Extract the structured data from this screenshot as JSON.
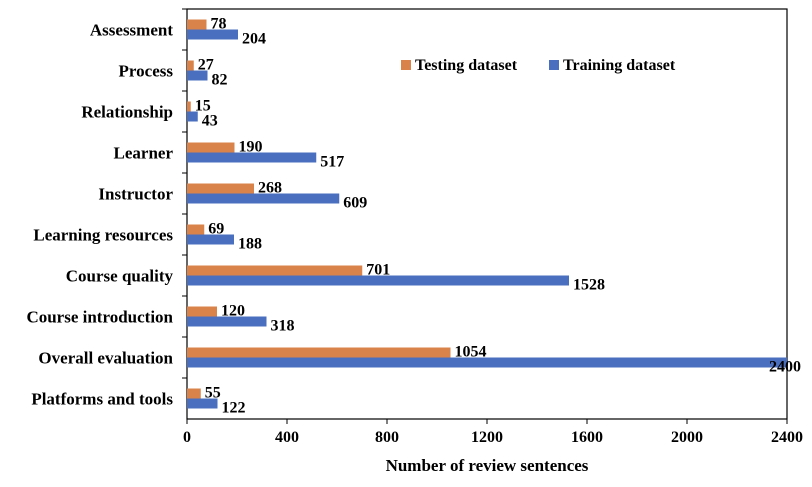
{
  "chart_data": {
    "type": "bar",
    "orientation": "horizontal",
    "categories": [
      "Assessment",
      "Process",
      "Relationship",
      "Learner",
      "Instructor",
      "Learning resources",
      "Course quality",
      "Course introduction",
      "Overall evaluation",
      "Platforms and tools"
    ],
    "series": [
      {
        "name": "Testing dataset",
        "color": "#D9834A",
        "values": [
          78,
          27,
          15,
          190,
          268,
          69,
          701,
          120,
          1054,
          55
        ]
      },
      {
        "name": "Training dataset",
        "color": "#4A6FBF",
        "values": [
          204,
          82,
          43,
          517,
          609,
          188,
          1528,
          318,
          2400,
          122
        ]
      }
    ],
    "title": "",
    "xlabel": "Number of review sentences",
    "ylabel": "",
    "xlim": [
      0,
      2400
    ],
    "xticks": [
      0,
      400,
      800,
      1200,
      1600,
      2000,
      2400
    ],
    "grid": false,
    "legend": "top-right",
    "data_labels": true
  }
}
